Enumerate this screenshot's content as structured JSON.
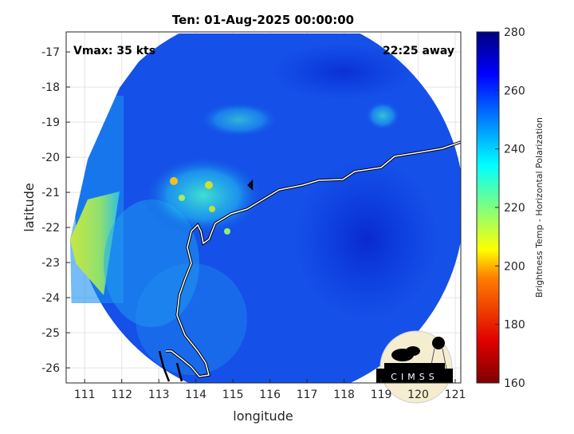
{
  "chart_data": {
    "type": "heatmap",
    "title": "Ten: 01-Aug-2025 00:00:00",
    "xlabel": "longitude",
    "ylabel": "latitude",
    "xlim": [
      110.5,
      121.15
    ],
    "ylim": [
      -26.43,
      -16.43
    ],
    "xticks": [
      111,
      112,
      113,
      114,
      115,
      116,
      117,
      118,
      119,
      120,
      121
    ],
    "xtick_labels": [
      "111",
      "112",
      "113",
      "114",
      "115",
      "116",
      "117",
      "118",
      "119",
      "120",
      "121"
    ],
    "yticks": [
      -17,
      -18,
      -19,
      -20,
      -21,
      -22,
      -23,
      -24,
      -25,
      -26
    ],
    "ytick_labels": [
      "-17",
      "-18",
      "-19",
      "-20",
      "-21",
      "-22",
      "-23",
      "-24",
      "-25",
      "-26"
    ],
    "grid": true,
    "colorbar": {
      "label": "Brightness Temp - Horizontal Polarization",
      "range": [
        160,
        280
      ],
      "ticks": [
        160,
        180,
        200,
        220,
        240,
        260,
        280
      ],
      "tick_labels": [
        "160",
        "180",
        "200",
        "220",
        "240",
        "260",
        "280"
      ],
      "colormap": "jet"
    },
    "annotations": {
      "vmax": "Vmax: 35 kts",
      "time_offset": "22:25 away"
    },
    "logo_text": "CIMSS"
  }
}
